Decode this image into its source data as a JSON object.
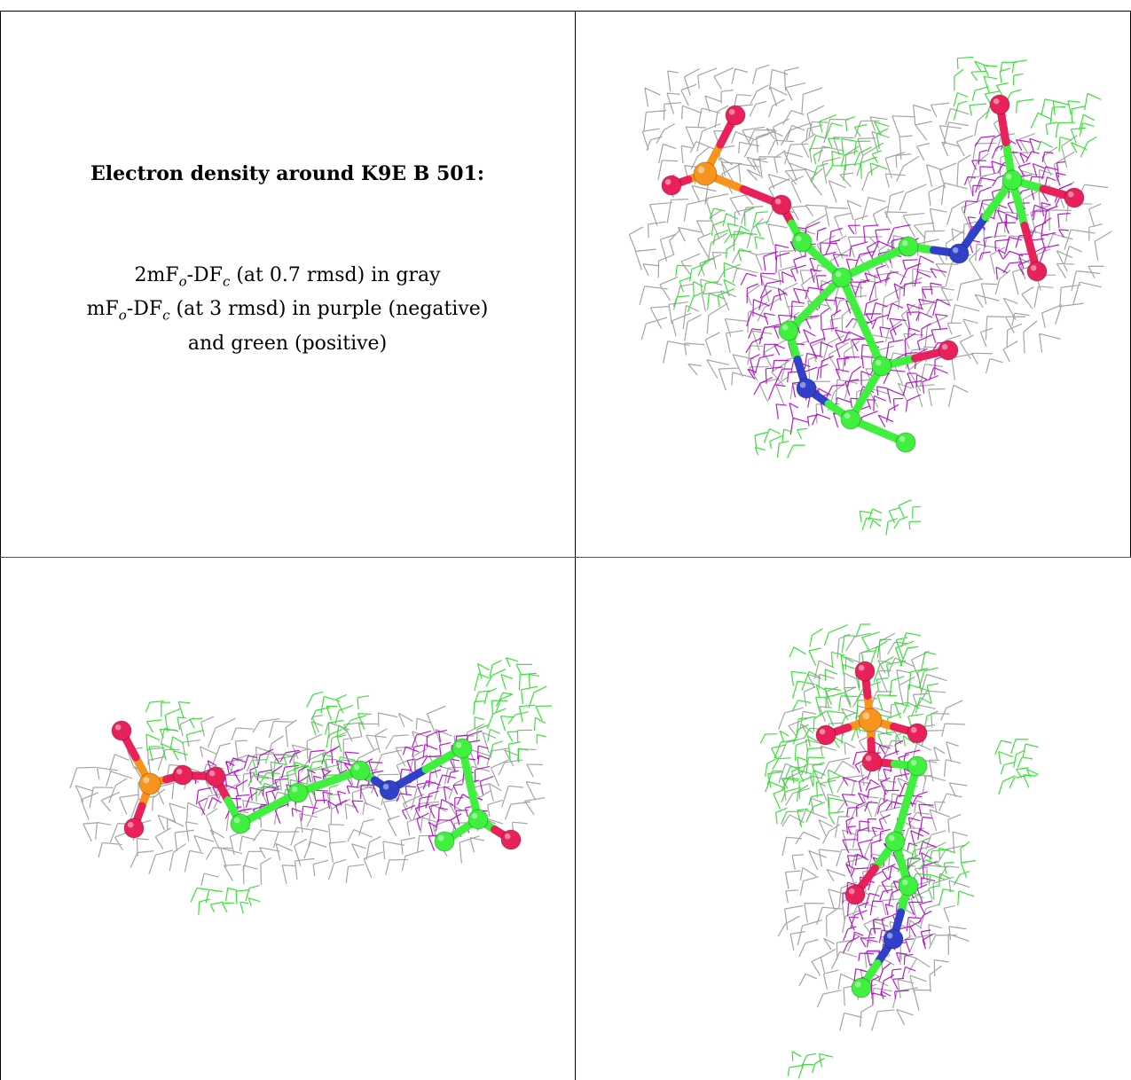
{
  "caption": {
    "title": "Electron density around K9E B 501:",
    "line1_prefix": "2mF",
    "line1_sub_o": "o",
    "line1_mid": "-DF",
    "line1_sub_c": "c",
    "line1_suffix": " (at 0.7 rmsd) in gray",
    "line2_prefix": "mF",
    "line2_sub_o": "o",
    "line2_mid": "-DF",
    "line2_sub_c": "c",
    "line2_suffix": " (at 3 rmsd) in purple (negative)",
    "line3": "and green (positive)"
  },
  "colors": {
    "mesh_gray": "#9a9a9a",
    "mesh_purple": "#b000c8",
    "mesh_green": "#22e022",
    "atom_carbon": "#3ff03f",
    "atom_oxygen": "#e8215a",
    "atom_nitrogen": "#3040c8",
    "atom_phosphorus": "#f7941d"
  },
  "panels": [
    {
      "name": "view-top-right"
    },
    {
      "name": "view-bottom-left"
    },
    {
      "name": "view-bottom-right"
    }
  ]
}
